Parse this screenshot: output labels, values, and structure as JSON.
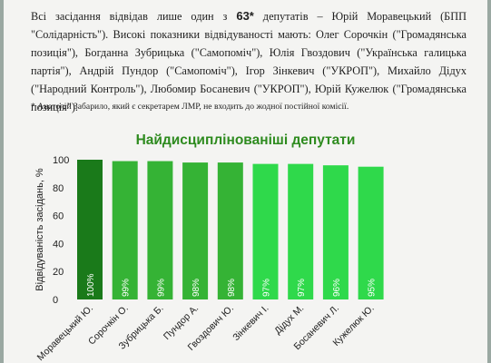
{
  "text": {
    "line1_a": "Всі засідання відвідав лише один з ",
    "line1_num": "63*",
    "line1_b": " депутатів – Юрій Моравецький (БПП \"Солідарність\").",
    "line2": "Високі показники відвідуваності мають: Олег Сорочкін (\"Громадянська позиція\"), Богданна Зубрицька (\"Самопоміч\"), Юлія Гвоздович (\"Українська галицька партія\"), Андрій Пундор (\"Самопоміч\"), Ігор Зінкевич (\"УКРОП\"), Михайло Дідух (\"Народний Контроль\"), Любомир Босаневич (\"УКРОП\"), Юрій Кужелюк (\"Громадянська позиція\").",
    "footnote": "* Анатолій Забарило, який є секретарем ЛМР, не входить до жодної постійної комісії."
  },
  "chart_data": {
    "type": "bar",
    "title": "Найдисциплінованіші депутати",
    "ylabel": "Відвідуваність засідань, %",
    "ylim": [
      0,
      100
    ],
    "yticks": [
      0,
      20,
      40,
      60,
      80,
      100
    ],
    "grid": false,
    "categories": [
      "Моравецький Ю.",
      "Сорочкін О.",
      "Зубрицька Б.",
      "Пундор А.",
      "Гвоздович Ю.",
      "Зінкевич І.",
      "Дідух М.",
      "Босаневич Л.",
      "Кужелюк Ю."
    ],
    "values": [
      100,
      99,
      99,
      98,
      98,
      97,
      97,
      96,
      95
    ],
    "value_labels": [
      "100%",
      "99%",
      "99%",
      "98%",
      "98%",
      "97%",
      "97%",
      "96%",
      "95%"
    ],
    "colors": [
      "#1a7a1a",
      "#35b335",
      "#35b335",
      "#35b335",
      "#35b335",
      "#2fd94b",
      "#2fd94b",
      "#2fd94b",
      "#2fd94b"
    ]
  }
}
